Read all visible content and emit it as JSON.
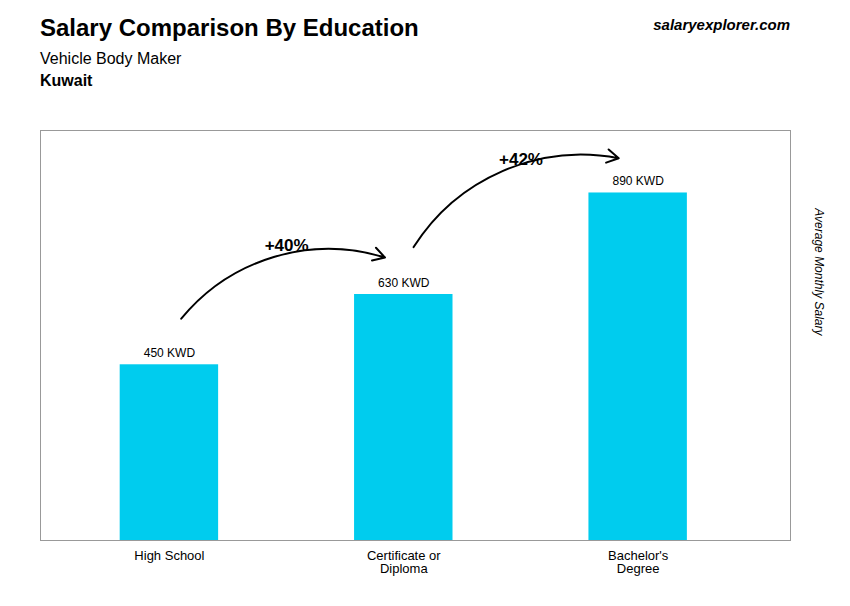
{
  "chart_data": {
    "type": "bar",
    "title": "Salary Comparison By Education",
    "subtitle": "Vehicle Body Maker",
    "annotations": {
      "header": [
        "Kuwait",
        "salaryexplorer.com"
      ],
      "changes": [
        "+40%",
        "+42%"
      ]
    },
    "categories": [
      "High School",
      "Certificate or\nDiploma",
      "Bachelor's\nDegree"
    ],
    "values": [
      450,
      630,
      890
    ],
    "value_labels": [
      "450 KWD",
      "630 KWD",
      "890 KWD"
    ],
    "data_labels": true,
    "color": "#00ccee",
    "ylabel": "Average Monthly Salary",
    "ylim": [
      0,
      1050
    ],
    "tick_labels": "x"
  }
}
